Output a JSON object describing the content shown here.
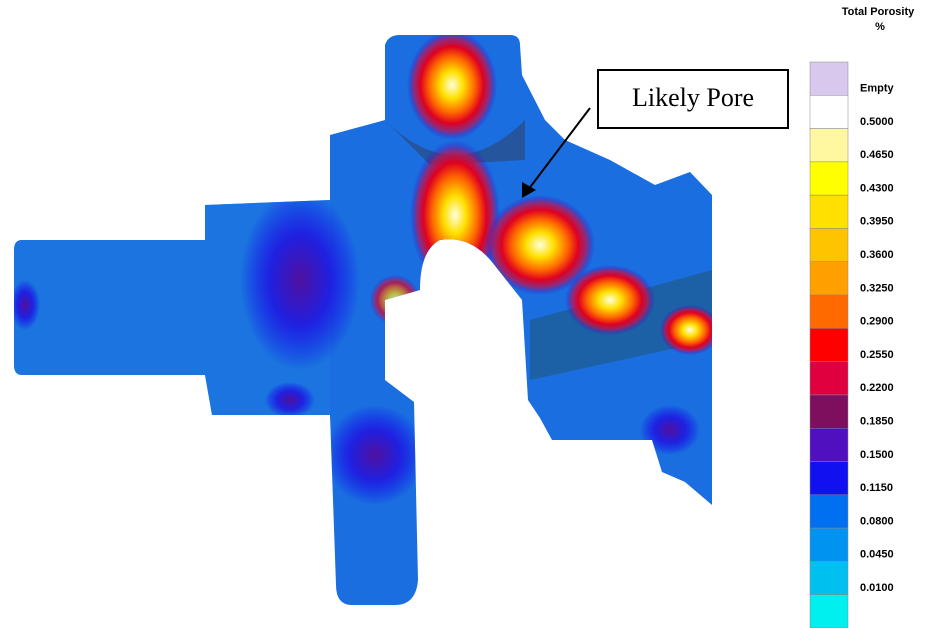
{
  "annotation": "Likely Pore",
  "legend": {
    "title": "Total Porosity",
    "unit": "%",
    "entries": [
      {
        "label": "Empty",
        "color": "#d8c8ee"
      },
      {
        "label": "0.5000",
        "color": "#ffffff"
      },
      {
        "label": "0.4650",
        "color": "#fff8a0"
      },
      {
        "label": "0.4300",
        "color": "#ffff00"
      },
      {
        "label": "0.3950",
        "color": "#ffe000"
      },
      {
        "label": "0.3600",
        "color": "#ffc400"
      },
      {
        "label": "0.3250",
        "color": "#ffa000"
      },
      {
        "label": "0.2900",
        "color": "#ff6a00"
      },
      {
        "label": "0.2550",
        "color": "#ff0000"
      },
      {
        "label": "0.2200",
        "color": "#e00040"
      },
      {
        "label": "0.1850",
        "color": "#7e0e5e"
      },
      {
        "label": "0.1500",
        "color": "#5010c0"
      },
      {
        "label": "0.1150",
        "color": "#1010f0"
      },
      {
        "label": "0.0800",
        "color": "#0070f0"
      },
      {
        "label": "0.0450",
        "color": "#0094f0"
      },
      {
        "label": "0.0100",
        "color": "#00c0f0"
      }
    ],
    "bottom_color": "#00f0f0"
  }
}
